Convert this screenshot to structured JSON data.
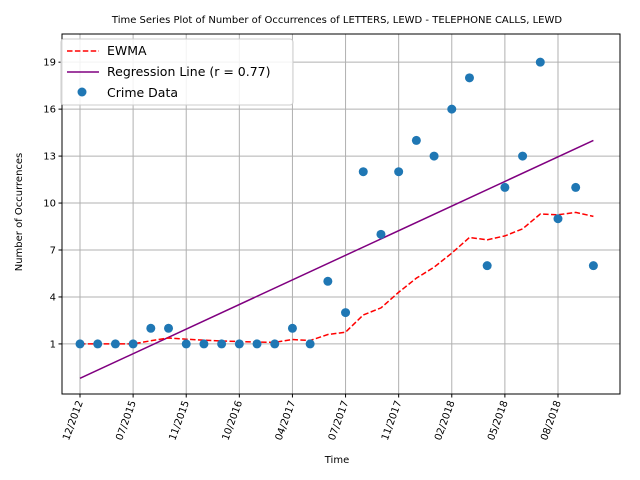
{
  "chart_data": {
    "type": "scatter",
    "title": "Time Series Plot of Number of Occurrences of LETTERS, LEWD  -  TELEPHONE CALLS, LEWD",
    "xlabel": "Time",
    "ylabel": "Number of Occurrences",
    "x_tick_labels": [
      "12/2012",
      "07/2015",
      "11/2015",
      "10/2016",
      "04/2017",
      "07/2017",
      "11/2017",
      "02/2018",
      "05/2018",
      "08/2018"
    ],
    "y_ticks": [
      1,
      4,
      7,
      10,
      13,
      16,
      19
    ],
    "ylim": [
      -2.2,
      20.8
    ],
    "grid": true,
    "legend_position": "upper-left",
    "colors": {
      "ewma": "#ff0000",
      "regression": "#800080",
      "points": "#1f77b4",
      "grid": "#b0b0b0"
    },
    "series": [
      {
        "name": "Crime Data",
        "kind": "scatter",
        "values": [
          1,
          1,
          1,
          1,
          2,
          2,
          1,
          1,
          1,
          1,
          1,
          1,
          2,
          1,
          5,
          3,
          12,
          8,
          12,
          14,
          13,
          16,
          18,
          6,
          11,
          13,
          19,
          9,
          11,
          6
        ]
      },
      {
        "name": "EWMA",
        "kind": "dashed-line",
        "values": [
          1.0,
          1.0,
          1.0,
          1.0,
          1.2,
          1.38,
          1.3,
          1.24,
          1.19,
          1.15,
          1.12,
          1.1,
          1.28,
          1.22,
          1.6,
          1.75,
          2.85,
          3.3,
          4.3,
          5.2,
          5.9,
          6.8,
          7.8,
          7.65,
          7.9,
          8.35,
          9.3,
          9.25,
          9.4,
          9.15
        ]
      },
      {
        "name": "Regression Line (r = 0.77)",
        "kind": "line",
        "values": [
          -1.2,
          14.0
        ]
      }
    ]
  }
}
